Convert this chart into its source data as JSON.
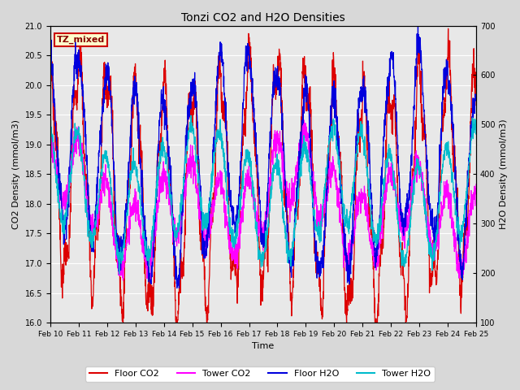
{
  "title": "Tonzi CO2 and H2O Densities",
  "xlabel": "Time",
  "ylabel_left": "CO2 Density (mmol/m3)",
  "ylabel_right": "H2O Density (mmol/m3)",
  "co2_ylim": [
    16.0,
    21.0
  ],
  "h2o_ylim": [
    100,
    700
  ],
  "co2_yticks": [
    16.0,
    16.5,
    17.0,
    17.5,
    18.0,
    18.5,
    19.0,
    19.5,
    20.0,
    20.5,
    21.0
  ],
  "h2o_yticks": [
    100,
    200,
    300,
    400,
    500,
    600,
    700
  ],
  "xtick_labels": [
    "Feb 10",
    "Feb 11",
    "Feb 12",
    "Feb 13",
    "Feb 14",
    "Feb 15",
    "Feb 16",
    "Feb 17",
    "Feb 18",
    "Feb 19",
    "Feb 20",
    "Feb 21",
    "Feb 22",
    "Feb 23",
    "Feb 24",
    "Feb 25"
  ],
  "annotation_text": "TZ_mixed",
  "colors": {
    "floor_co2": "#dd0000",
    "tower_co2": "#ff00ff",
    "floor_h2o": "#0000dd",
    "tower_h2o": "#00bbcc"
  },
  "legend_labels": [
    "Floor CO2",
    "Tower CO2",
    "Floor H2O",
    "Tower H2O"
  ],
  "bg_color": "#d8d8d8",
  "plot_bg": "#e8e8e8",
  "n_points": 2160,
  "seed": 7
}
